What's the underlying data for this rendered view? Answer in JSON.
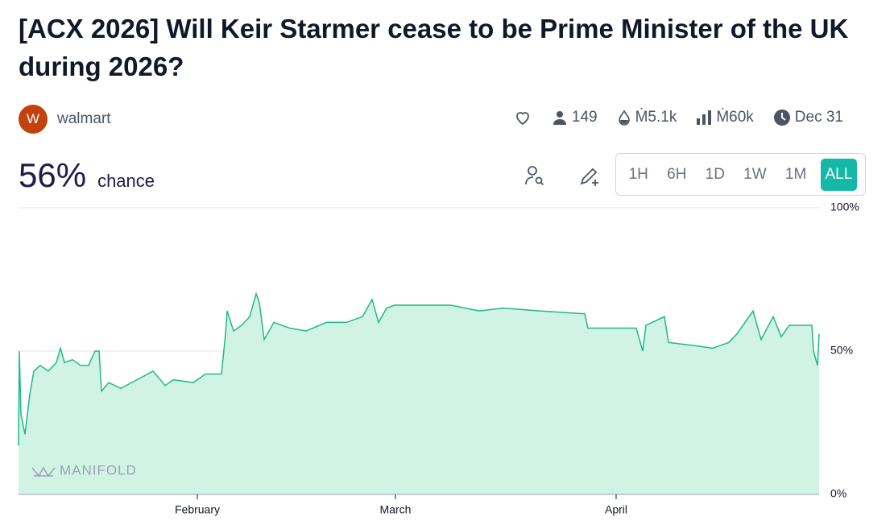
{
  "header": {
    "title": "[ACX 2026] Will Keir Starmer cease to be Prime Minister of the UK during 2026?",
    "avatar": "W",
    "author": "walmart",
    "stats": {
      "traders": "149",
      "liquidity": "Ṁ5.1k",
      "volume": "Ṁ60k",
      "close_date": "Dec 31"
    }
  },
  "probability": {
    "value": "56%",
    "label": "chance"
  },
  "periods": [
    "1H",
    "6H",
    "1D",
    "1W",
    "1M",
    "ALL"
  ],
  "selected_period": 5,
  "chart_data": {
    "type": "line",
    "watermark": "MANIFOLD",
    "color": "#1fb98a",
    "fill": "#d1f3e6",
    "x": [
      0,
      1,
      3,
      8,
      14,
      19,
      27,
      37,
      47,
      52,
      57,
      67,
      77,
      87,
      95,
      100,
      103,
      112,
      127,
      147,
      167,
      182,
      192,
      217,
      232,
      252,
      257,
      259,
      267,
      277,
      287,
      295,
      299,
      305,
      317,
      337,
      357,
      382,
      407,
      427,
      439,
      447,
      457,
      467,
      497,
      537,
      572,
      602,
      647,
      703,
      707,
      767,
      775,
      779,
      802,
      807,
      837,
      862,
      882,
      892,
      912,
      922,
      937,
      947,
      957,
      985,
      987,
      992,
      994
    ],
    "values": [
      17,
      50,
      28,
      21,
      35,
      43,
      45,
      43,
      46,
      51,
      46,
      47,
      45,
      45,
      50,
      50,
      36,
      39,
      37,
      40,
      43,
      38,
      40,
      39,
      42,
      42,
      56,
      64,
      57,
      59,
      62,
      70,
      67,
      54,
      60,
      58,
      57,
      60,
      60,
      62,
      68,
      60,
      65,
      66,
      66,
      66,
      64,
      65,
      64,
      63,
      58,
      58,
      50,
      59,
      62,
      53,
      52,
      51,
      53,
      56,
      64,
      54,
      62,
      55,
      59,
      59,
      50,
      45,
      56
    ],
    "xlim": [
      0,
      994
    ],
    "xticks": [
      {
        "value": 222,
        "label": "February"
      },
      {
        "value": 468,
        "label": "March"
      },
      {
        "value": 742,
        "label": "April"
      }
    ],
    "ylim": [
      0,
      100
    ],
    "yticks": [
      {
        "value": 0,
        "label": "0%"
      },
      {
        "value": 50,
        "label": "50%"
      },
      {
        "value": 100,
        "label": "100%"
      }
    ],
    "grid": true
  }
}
